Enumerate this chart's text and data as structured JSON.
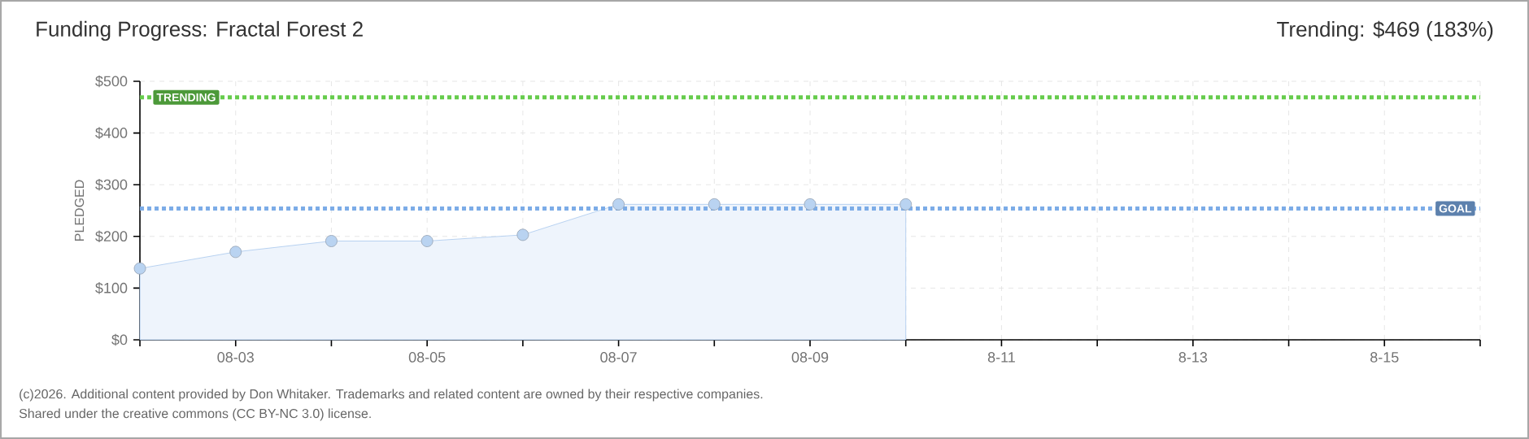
{
  "chart_data": {
    "type": "area",
    "title": "Funding Progress: Fractal Forest 2",
    "subtitle": "Trending: $469 (183%)",
    "ylabel": "PLEDGED",
    "categories": [
      null,
      "08-03",
      null,
      "08-05",
      null,
      "08-07",
      null,
      "08-09",
      null,
      "8-11",
      null,
      "8-13",
      null,
      "8-15",
      null
    ],
    "series": [
      {
        "color": "#a8c8ee",
        "values": [
          138,
          170,
          191,
          191,
          203,
          262,
          262,
          262,
          262,
          null,
          null,
          null,
          null,
          null,
          null
        ]
      }
    ],
    "ylim": [
      0,
      500
    ],
    "yticks": [
      {
        "value": 0,
        "label": "$0"
      },
      {
        "value": 100,
        "label": "$100"
      },
      {
        "value": 200,
        "label": "$200"
      },
      {
        "value": 300,
        "label": "$300"
      },
      {
        "value": 400,
        "label": "$400"
      },
      {
        "value": 500,
        "label": "$500"
      }
    ],
    "ref_lines": [
      {
        "axis": "y",
        "value": 469,
        "label": "TRENDING",
        "color": "#66cc4c",
        "line_style": "dotted"
      },
      {
        "axis": "y",
        "value": 254,
        "label": "GOAL",
        "color": "#7cace7",
        "line_style": "dotted"
      }
    ],
    "grid": true,
    "marker": "circle",
    "annotations": [
      "(c)2026. Additional content provided by Don Whitaker. Trademarks and related content are owned by their respective companies.",
      "Shared under the creative commons (CC BY-NC 3.0) license."
    ]
  }
}
